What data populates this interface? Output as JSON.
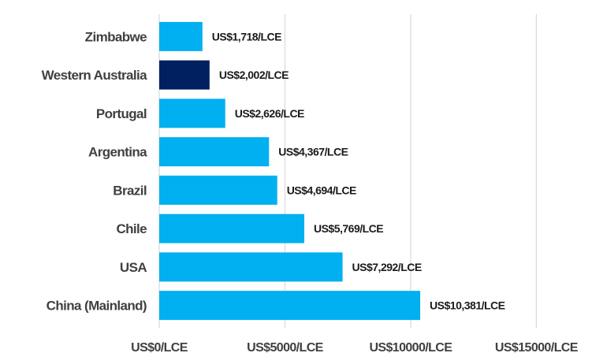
{
  "chart_data": {
    "type": "bar",
    "orientation": "horizontal",
    "categories": [
      "Zimbabwe",
      "Western Australia",
      "Portugal",
      "Argentina",
      "Brazil",
      "Chile",
      "USA",
      "China (Mainland)"
    ],
    "values": [
      1718,
      2002,
      2626,
      4367,
      4694,
      5769,
      7292,
      10381
    ],
    "data_labels": [
      "US$1,718/LCE",
      "US$2,002/LCE",
      "US$2,626/LCE",
      "US$4,367/LCE",
      "US$4,694/LCE",
      "US$5,769/LCE",
      "US$7,292/LCE",
      "US$10,381/LCE"
    ],
    "highlight_category": "Western Australia",
    "colors": {
      "default": "#00b0f0",
      "highlight": "#002060"
    },
    "xlim": [
      0,
      17500
    ],
    "xticks": [
      0,
      5000,
      10000,
      15000
    ],
    "xtick_labels": [
      "US$0/LCE",
      "US$5000/LCE",
      "US$10000/LCE",
      "US$15000/LCE"
    ],
    "grid": "vertical",
    "legend": "none",
    "title": "",
    "xlabel": "",
    "ylabel": ""
  }
}
